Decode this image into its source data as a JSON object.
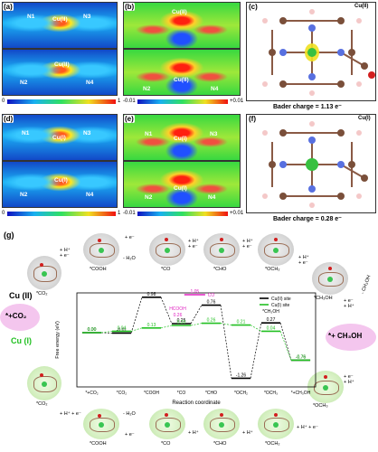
{
  "panels": {
    "a": "(a)",
    "b": "(b)",
    "c": "(c)",
    "d": "(d)",
    "e": "(e)",
    "f": "(f)",
    "g": "(g)"
  },
  "atoms": {
    "cu2": "Cu(II)",
    "cu1": "Cu(I)",
    "n1": "N1",
    "n2": "N2",
    "n3": "N3",
    "n4": "N4"
  },
  "colorbar_elf": {
    "min": "0",
    "max": "1"
  },
  "colorbar_cdd": {
    "min": "-0.01",
    "max": "+0.01"
  },
  "bader": {
    "c_label": "Cu(II)",
    "c_text": "Bader charge = 1.13 e⁻",
    "f_label": "Cu(I)",
    "f_text": "Bader charge = 0.28 e⁻"
  },
  "diagram": {
    "cu2": "Cu (II)",
    "cu1": "Cu (I)",
    "co2": "*+CO₂",
    "ch3oh": "*+ CH₃OH",
    "steps_top": [
      "*CO₂",
      "*COOH",
      "*CO",
      "*CHO",
      "*OCH₂",
      "*CH₃OH"
    ],
    "steps_bot": [
      "*CO₂",
      "*COOH",
      "*CO",
      "*CHO",
      "*OCH₂",
      "*OCH₃"
    ],
    "arrow_hplus_e": "+ H⁺\n+ e⁻",
    "arrow_water": "- H₂O",
    "arrow_ch3oh": "- CH₃OH"
  },
  "chart_data": {
    "type": "line",
    "ylabel": "Free energy (eV)",
    "xlabel": "Reaction coordinate",
    "categories": [
      "*+CO₂",
      "*CO₂",
      "*COOH",
      "*CO",
      "*CHO",
      "*OCH₂",
      "*OCH₃",
      "*+CH₃OH"
    ],
    "legend": [
      "Cu(II) site",
      "Cu(I) site"
    ],
    "colors": {
      "cu2": "#000000",
      "cu1": "#22c022",
      "alt": "#e020c0"
    },
    "series": [
      {
        "name": "Cu(II) site",
        "labels": [
          "0.00",
          "-0.01",
          "0.98",
          "0.25",
          "0.76",
          "-1.26",
          "0.27",
          "-0.76"
        ]
      },
      {
        "name": "Cu(I) site",
        "labels": [
          "0.00",
          "0.04",
          "0.13",
          "0.20",
          "0.26",
          "0.21",
          "0.04",
          "-0.76"
        ]
      }
    ],
    "alt_labels": {
      "hcooh": "HCOOH",
      "v1": "0.26",
      "v2": "1.05",
      "co": "CO",
      "ch3oh": "*CH₃OH"
    }
  }
}
